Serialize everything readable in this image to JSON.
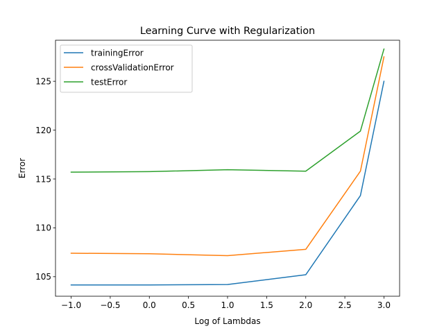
{
  "chart_data": {
    "type": "line",
    "title": "Learning Curve with Regularization",
    "xlabel": "Log of Lambdas",
    "ylabel": "Error",
    "x": [
      -1.0,
      0.0,
      1.0,
      2.0,
      2.699,
      3.0
    ],
    "xlim": [
      -1.2,
      3.2
    ],
    "ylim": [
      103.0,
      129.2
    ],
    "xticks": [
      -1.0,
      -0.5,
      0.0,
      0.5,
      1.0,
      1.5,
      2.0,
      2.5,
      3.0
    ],
    "xtick_labels": [
      "−1.0",
      "−0.5",
      "0.0",
      "0.5",
      "1.0",
      "1.5",
      "2.0",
      "2.5",
      "3.0"
    ],
    "yticks": [
      105,
      110,
      115,
      120,
      125
    ],
    "ytick_labels": [
      "105",
      "110",
      "115",
      "120",
      "125"
    ],
    "grid": false,
    "legend_position": "top-left",
    "series": [
      {
        "name": "trainingError",
        "color": "#1f77b4",
        "values": [
          104.15,
          104.15,
          104.2,
          105.2,
          113.3,
          125.0
        ]
      },
      {
        "name": "crossValidationError",
        "color": "#ff7f0e",
        "values": [
          107.4,
          107.35,
          107.15,
          107.8,
          115.8,
          127.5
        ]
      },
      {
        "name": "testError",
        "color": "#2ca02c",
        "values": [
          115.7,
          115.75,
          115.95,
          115.8,
          119.9,
          128.3
        ]
      }
    ]
  }
}
